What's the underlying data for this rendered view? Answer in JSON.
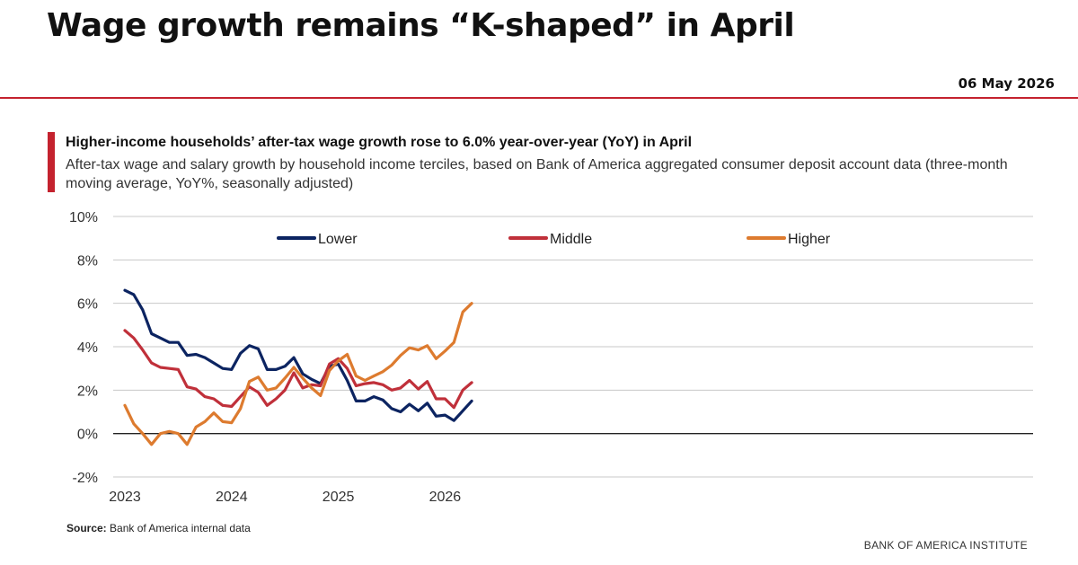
{
  "header": {
    "title": "Wage growth remains “K-shaped” in April",
    "date": "06 May 2026"
  },
  "subtitle": {
    "headline": "Higher-income households’ after-tax wage growth rose to 6.0% year-over-year (YoY) in April",
    "description": "After-tax wage and salary growth by household income terciles, based on Bank of America aggregated consumer deposit account data (three-month moving average, YoY%, seasonally adjusted)"
  },
  "footer": {
    "source_label": "Source:",
    "source_text": " Bank of America internal data",
    "brand": "BANK OF AMERICA INSTITUTE"
  },
  "colors": {
    "accent": "#c4222e",
    "lower": "#0c2461",
    "middle": "#c0303a",
    "higher": "#dd7b2f"
  },
  "chart_data": {
    "type": "line",
    "title": "",
    "xlabel": "",
    "ylabel": "",
    "ylim": [
      -2,
      10
    ],
    "yticks": [
      -2,
      0,
      2,
      4,
      6,
      8,
      10
    ],
    "ytick_labels": [
      "-2%",
      "0%",
      "2%",
      "4%",
      "6%",
      "8%",
      "10%"
    ],
    "xtick_labels": [
      "2023",
      "2024",
      "2025",
      "2026"
    ],
    "x_start": "2023-01",
    "x_end": "2026-04",
    "frequency": "monthly",
    "grid": true,
    "legend_position": "top",
    "series": [
      {
        "name": "Lower",
        "color": "#0c2461",
        "values": [
          6.6,
          6.4,
          5.7,
          4.6,
          4.4,
          4.2,
          4.2,
          3.6,
          3.65,
          3.5,
          3.25,
          3.0,
          2.95,
          3.7,
          4.05,
          3.9,
          2.95,
          2.95,
          3.1,
          3.5,
          2.75,
          2.5,
          2.3,
          3.1,
          3.2,
          2.45,
          1.5,
          1.5,
          1.7,
          1.55,
          1.15,
          1.0,
          1.35,
          1.05,
          1.4,
          0.8,
          0.85,
          0.6,
          1.05,
          1.5
        ]
      },
      {
        "name": "Middle",
        "color": "#c0303a",
        "values": [
          4.75,
          4.4,
          3.85,
          3.25,
          3.05,
          3.0,
          2.95,
          2.15,
          2.05,
          1.7,
          1.6,
          1.3,
          1.25,
          1.7,
          2.15,
          1.9,
          1.3,
          1.6,
          2.0,
          2.8,
          2.1,
          2.25,
          2.2,
          3.2,
          3.45,
          3.0,
          2.2,
          2.3,
          2.35,
          2.25,
          2.0,
          2.1,
          2.45,
          2.05,
          2.4,
          1.6,
          1.6,
          1.2,
          2.0,
          2.35
        ]
      },
      {
        "name": "Higher",
        "color": "#dd7b2f",
        "values": [
          1.3,
          0.45,
          0.0,
          -0.5,
          0.0,
          0.1,
          0.0,
          -0.5,
          0.3,
          0.55,
          0.95,
          0.55,
          0.5,
          1.15,
          2.4,
          2.6,
          2.0,
          2.1,
          2.55,
          3.05,
          2.55,
          2.1,
          1.75,
          2.9,
          3.35,
          3.65,
          2.65,
          2.45,
          2.65,
          2.85,
          3.15,
          3.6,
          3.95,
          3.85,
          4.05,
          3.45,
          3.8,
          4.2,
          5.6,
          6.0
        ]
      }
    ]
  }
}
